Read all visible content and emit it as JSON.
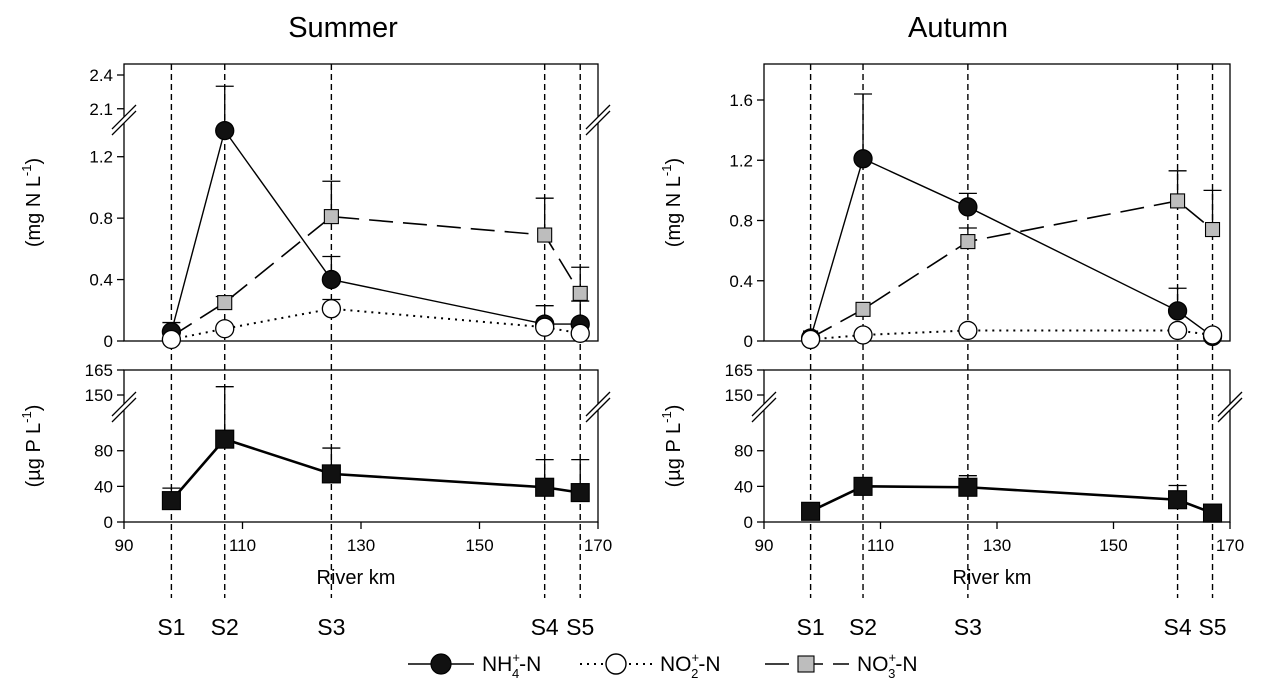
{
  "figure": {
    "legend": [
      {
        "key": "nh4",
        "base": "NH",
        "sup": "+",
        "sub": "4",
        "tail": "-N"
      },
      {
        "key": "no2",
        "base": "NO",
        "sup": "+",
        "sub": "2",
        "tail": "-N"
      },
      {
        "key": "no3",
        "base": "NO",
        "sup": "+",
        "sub": "3",
        "tail": "-N"
      }
    ],
    "n_ylabel": {
      "pre": "(mg N L",
      "sup": "-1",
      "post": ")"
    },
    "p_ylabel": {
      "pre": "(",
      "mu": "µ",
      "mid": "g P L",
      "sup": "-1",
      "post": ")"
    },
    "xlabel": "River km",
    "colors": {
      "nh4": "#111111",
      "no2": "#ffffff",
      "no3": "#bdbdbd",
      "tp": "#111111",
      "axis": "#000000"
    }
  },
  "chart_data": [
    {
      "type": "line",
      "title": "Summer",
      "xlabel": "River km",
      "xlim": [
        90,
        170
      ],
      "xticks": [
        90,
        110,
        130,
        150,
        170
      ],
      "stations": [
        {
          "name": "S1",
          "km": 98
        },
        {
          "name": "S2",
          "km": 107
        },
        {
          "name": "S3",
          "km": 125
        },
        {
          "name": "S4",
          "km": 161
        },
        {
          "name": "S5",
          "km": 167
        }
      ],
      "nitrogen": {
        "ylabel": "(mg N L-1)",
        "ylim": [
          0,
          2.4
        ],
        "axis_break": [
          1.4,
          2.0
        ],
        "yticks": [
          0.0,
          0.4,
          0.8,
          1.2,
          2.1,
          2.4
        ],
        "series": [
          {
            "name": "NH4+-N",
            "key": "nh4",
            "x": [
              98,
              107,
              125,
              161,
              167
            ],
            "y": [
              0.06,
              1.37,
              0.4,
              0.11,
              0.11
            ],
            "err": [
              0.07,
              2.3,
              0.55,
              0.23,
              0.26
            ]
          },
          {
            "name": "NO2+-N",
            "key": "no2",
            "x": [
              98,
              107,
              125,
              161,
              167
            ],
            "y": [
              0.01,
              0.08,
              0.21,
              0.09,
              0.05
            ],
            "err": [
              0.01,
              0.08,
              0.27,
              0.1,
              0.05
            ]
          },
          {
            "name": "NO3+-N",
            "key": "no3",
            "x": [
              98,
              107,
              125,
              161,
              167
            ],
            "y": [
              0.03,
              0.25,
              0.81,
              0.69,
              0.31
            ],
            "err": [
              0.12,
              0.29,
              1.04,
              0.93,
              0.48
            ]
          }
        ]
      },
      "phosphorus": {
        "ylabel": "(µg P L-1)",
        "ylim": [
          0,
          165
        ],
        "axis_break": [
          110,
          135
        ],
        "yticks": [
          0,
          40,
          80,
          150,
          165
        ],
        "series": [
          {
            "name": "TP",
            "key": "tp",
            "x": [
              98,
              107,
              125,
              161,
              167
            ],
            "y": [
              24,
              93,
              54,
              39,
              33
            ],
            "err": [
              38,
              155,
              83,
              70,
              70
            ]
          }
        ]
      }
    },
    {
      "type": "line",
      "title": "Autumn",
      "xlabel": "River km",
      "xlim": [
        90,
        170
      ],
      "xticks": [
        90,
        110,
        130,
        150,
        170
      ],
      "stations": [
        {
          "name": "S1",
          "km": 98
        },
        {
          "name": "S2",
          "km": 107
        },
        {
          "name": "S3",
          "km": 125
        },
        {
          "name": "S4",
          "km": 161
        },
        {
          "name": "S5",
          "km": 167
        }
      ],
      "nitrogen": {
        "ylabel": "(mg N L-1)",
        "ylim": [
          0,
          1.8
        ],
        "yticks": [
          0.0,
          0.4,
          0.8,
          1.2,
          1.6
        ],
        "series": [
          {
            "name": "NH4+-N",
            "key": "nh4",
            "x": [
              98,
              107,
              125,
              161,
              167
            ],
            "y": [
              0.02,
              1.21,
              0.89,
              0.2,
              0.03
            ],
            "err": [
              0.02,
              1.64,
              0.98,
              0.35,
              0.03
            ]
          },
          {
            "name": "NO2+-N",
            "key": "no2",
            "x": [
              98,
              107,
              125,
              161,
              167
            ],
            "y": [
              0.01,
              0.04,
              0.07,
              0.07,
              0.04
            ],
            "err": [
              0.01,
              0.04,
              0.07,
              0.07,
              0.04
            ]
          },
          {
            "name": "NO3+-N",
            "key": "no3",
            "x": [
              98,
              107,
              125,
              161,
              167
            ],
            "y": [
              0.02,
              0.21,
              0.66,
              0.93,
              0.74
            ],
            "err": [
              0.02,
              0.21,
              0.75,
              1.13,
              1.0
            ]
          }
        ]
      },
      "phosphorus": {
        "ylabel": "(µg P L-1)",
        "ylim": [
          0,
          165
        ],
        "axis_break": [
          110,
          135
        ],
        "yticks": [
          0,
          40,
          80,
          150,
          165
        ],
        "series": [
          {
            "name": "TP",
            "key": "tp",
            "x": [
              98,
              107,
              125,
              161,
              167
            ],
            "y": [
              12,
              40,
              39,
              25,
              10
            ],
            "err": [
              12,
              47,
              52,
              41,
              10
            ]
          }
        ]
      }
    }
  ]
}
